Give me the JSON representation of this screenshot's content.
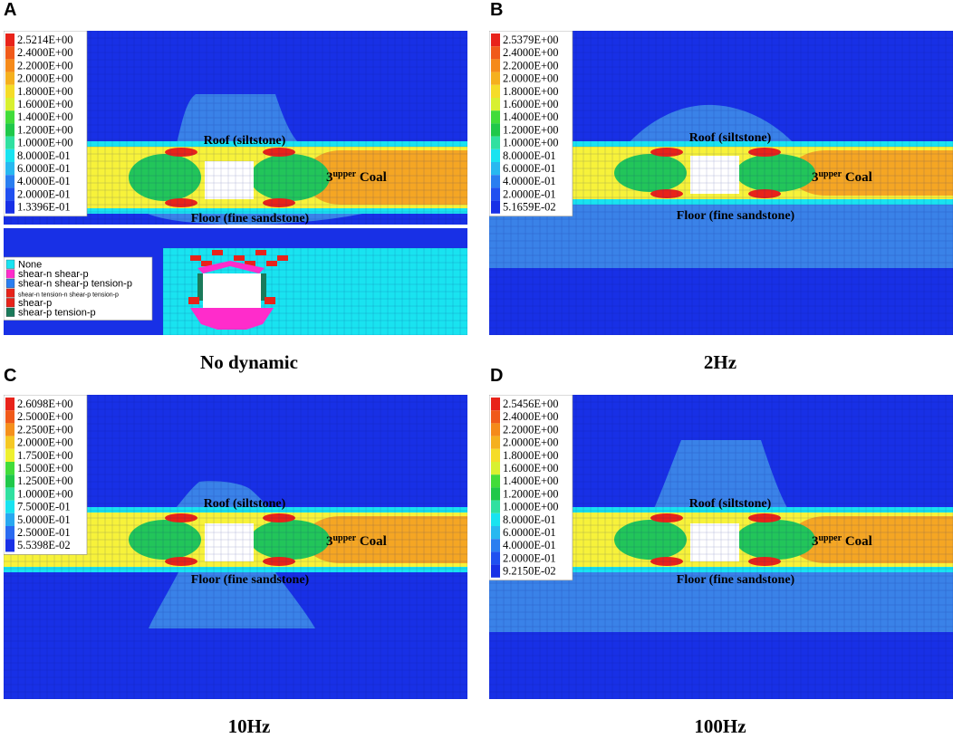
{
  "panels": [
    {
      "letter": "A",
      "caption": "No dynamic",
      "legend": [
        "2.5214E+00",
        "2.4000E+00",
        "2.2000E+00",
        "2.0000E+00",
        "1.8000E+00",
        "1.6000E+00",
        "1.4000E+00",
        "1.2000E+00",
        "1.0000E+00",
        "8.0000E-01",
        "6.0000E-01",
        "4.0000E-01",
        "2.0000E-01",
        "1.3396E-01"
      ],
      "roof": "Roof (siltstone)",
      "floor": "Floor (fine sandstone)",
      "coal_sup": "upper",
      "coal_num": "3",
      "coal_word": "Coal",
      "state_legend": [
        "None",
        "shear-n shear-p",
        "shear-n shear-p tension-p",
        "shear-n tension-n shear-p tension-p",
        "shear-p",
        "shear-p tension-p"
      ]
    },
    {
      "letter": "B",
      "caption": "2Hz",
      "legend": [
        "2.5379E+00",
        "2.4000E+00",
        "2.2000E+00",
        "2.0000E+00",
        "1.8000E+00",
        "1.6000E+00",
        "1.4000E+00",
        "1.2000E+00",
        "1.0000E+00",
        "8.0000E-01",
        "6.0000E-01",
        "4.0000E-01",
        "2.0000E-01",
        "5.1659E-02"
      ],
      "roof": "Roof (siltstone)",
      "floor": "Floor (fine sandstone)",
      "coal_sup": "upper",
      "coal_num": "3",
      "coal_word": "Coal"
    },
    {
      "letter": "C",
      "caption": "10Hz",
      "legend": [
        "2.6098E+00",
        "2.5000E+00",
        "2.2500E+00",
        "2.0000E+00",
        "1.7500E+00",
        "1.5000E+00",
        "1.2500E+00",
        "1.0000E+00",
        "7.5000E-01",
        "5.0000E-01",
        "2.5000E-01",
        "5.5398E-02"
      ],
      "roof": "Roof (siltstone)",
      "floor": "Floor (fine sandstone)",
      "coal_sup": "upper",
      "coal_num": "3",
      "coal_word": "Coal"
    },
    {
      "letter": "D",
      "caption": "100Hz",
      "legend": [
        "2.5456E+00",
        "2.4000E+00",
        "2.2000E+00",
        "2.0000E+00",
        "1.8000E+00",
        "1.6000E+00",
        "1.4000E+00",
        "1.2000E+00",
        "1.0000E+00",
        "8.0000E-01",
        "6.0000E-01",
        "4.0000E-01",
        "2.0000E-01",
        "9.2150E-02"
      ],
      "roof": "Roof (siltstone)",
      "floor": "Floor (fine sandstone)",
      "coal_sup": "upper",
      "coal_num": "3",
      "coal_word": "Coal"
    }
  ],
  "colors": {
    "background_blue": "#1830e6",
    "light_blue": "#3a82e8",
    "cyan": "#19e3f0",
    "green": "#22c55a",
    "yellow": "#f7f23a",
    "orange": "#f5a623",
    "red": "#e8231a",
    "magenta": "#ff2ccb",
    "dark_green": "#1a7a5a"
  },
  "legend_palettes": {
    "p14": [
      "#e8231a",
      "#f05a1a",
      "#f58a1a",
      "#f5b01e",
      "#f5dc28",
      "#d8f030",
      "#42dc3a",
      "#20c84a",
      "#30e0a0",
      "#19e3f0",
      "#28b8f0",
      "#2a7ef0",
      "#2050f0",
      "#1830e6"
    ],
    "p12": [
      "#e8231a",
      "#f05a1a",
      "#f5901c",
      "#f5c824",
      "#eef030",
      "#42dc3a",
      "#20c84a",
      "#30e0a0",
      "#19e3f0",
      "#28a8f0",
      "#2a6af0",
      "#1830e6"
    ],
    "state": [
      "#19e3f0",
      "#ff2ccb",
      "#2a7ef0",
      "#e8231a",
      "#e8231a",
      "#1a7a5a"
    ]
  }
}
